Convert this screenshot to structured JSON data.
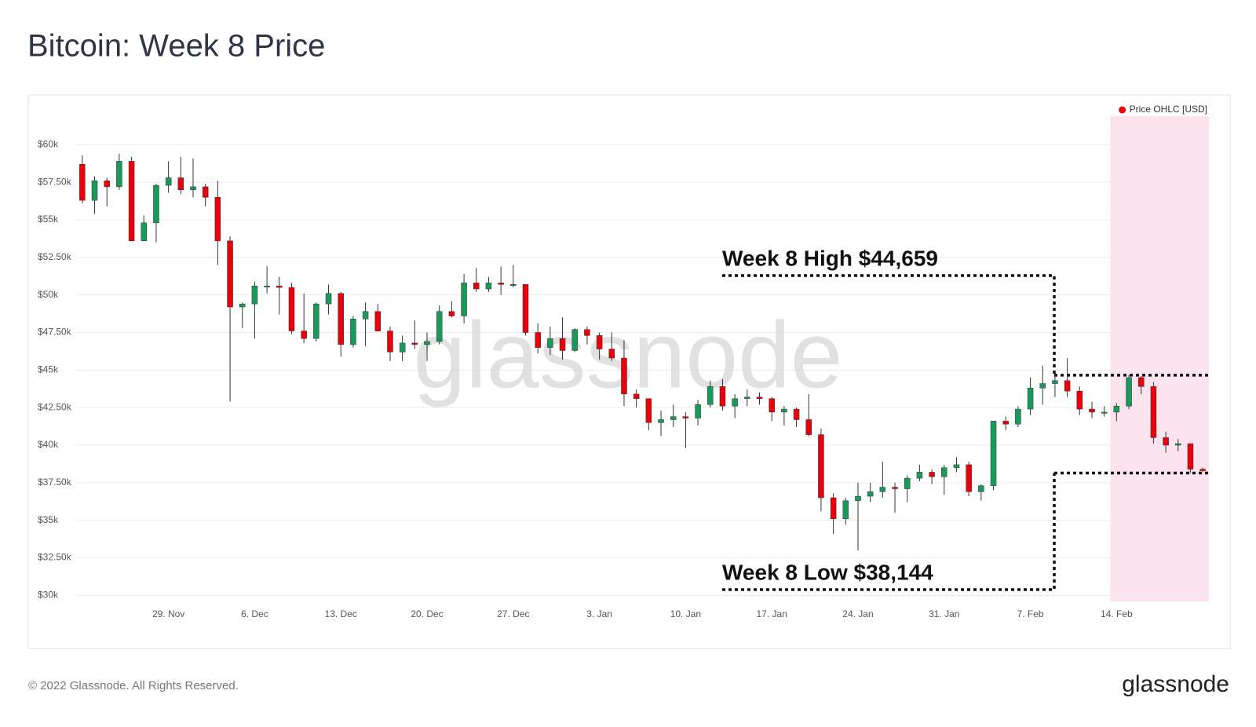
{
  "chart_data": {
    "type": "candlestick",
    "title": "Bitcoin: Week 8 Price",
    "footer": "© 2022 Glassnode. All Rights Reserved.",
    "logo": "glassnode",
    "watermark": "glassnode",
    "categories": [
      null,
      null,
      null,
      null,
      null,
      null,
      null,
      "29. Nov",
      null,
      null,
      null,
      null,
      null,
      null,
      "6. Dec",
      null,
      null,
      null,
      null,
      null,
      null,
      "13. Dec",
      null,
      null,
      null,
      null,
      null,
      null,
      "20. Dec",
      null,
      null,
      null,
      null,
      null,
      null,
      "27. Dec",
      null,
      null,
      null,
      null,
      null,
      null,
      "3. Jan",
      null,
      null,
      null,
      null,
      null,
      null,
      "10. Jan",
      null,
      null,
      null,
      null,
      null,
      null,
      "17. Jan",
      null,
      null,
      null,
      null,
      null,
      null,
      "24. Jan",
      null,
      null,
      null,
      null,
      null,
      null,
      "31. Jan",
      null,
      null,
      null,
      null,
      null,
      null,
      "7. Feb",
      null,
      null,
      null,
      null,
      null,
      null,
      "14. Feb",
      null,
      null,
      null,
      null,
      null,
      null,
      null
    ],
    "series": [
      {
        "name": "Price OHLC [USD]",
        "color": "#e8000b",
        "up_color": "#1a9a5a",
        "down_color": "#e8000b",
        "open": [
          58700,
          56300,
          57600,
          57200,
          58900,
          53600,
          54800,
          57300,
          57800,
          57000,
          57200,
          56500,
          53600,
          49200,
          49400,
          50600,
          50600,
          50500,
          47600,
          47100,
          49400,
          50100,
          46700,
          48400,
          48900,
          47600,
          46200,
          46800,
          46700,
          46900,
          48900,
          48600,
          50800,
          50400,
          50800,
          50700,
          50700,
          47500,
          46500,
          47100,
          46300,
          47700,
          47300,
          46400,
          45800,
          43400,
          43100,
          41500,
          41700,
          41900,
          41800,
          42700,
          43900,
          42600,
          43100,
          43200,
          43100,
          42200,
          42400,
          41700,
          40700,
          36500,
          35100,
          36300,
          36600,
          36900,
          37200,
          37100,
          37800,
          38200,
          37900,
          38500,
          38700,
          36900,
          37300,
          41600,
          41400,
          42400,
          43800,
          44100,
          44300,
          43600,
          42400,
          42200,
          42200,
          42600,
          44500,
          43900,
          40500,
          40000,
          40100,
          38400
        ],
        "high": [
          59300,
          57900,
          57800,
          59400,
          59200,
          55300,
          57400,
          58900,
          59200,
          59100,
          57400,
          57600,
          53900,
          49500,
          50900,
          51900,
          51200,
          50800,
          50100,
          49500,
          50700,
          50200,
          48600,
          49500,
          49400,
          47900,
          47300,
          48300,
          47500,
          49300,
          49600,
          51400,
          51800,
          51200,
          51900,
          52000,
          50700,
          48100,
          47900,
          48500,
          47800,
          47900,
          47500,
          47500,
          47000,
          43700,
          43100,
          42300,
          42700,
          42200,
          43000,
          44300,
          44400,
          43400,
          43700,
          43500,
          43200,
          42600,
          42500,
          43400,
          41100,
          36800,
          36500,
          37500,
          37500,
          38900,
          37500,
          38000,
          38700,
          38400,
          38700,
          39200,
          38900,
          37400,
          41600,
          41900,
          42600,
          44500,
          45300,
          44700,
          45800,
          43900,
          42900,
          42600,
          42800,
          44659,
          44600,
          44200,
          40900,
          40400,
          40100,
          38500
        ],
        "low": [
          56100,
          55400,
          55900,
          57000,
          53600,
          53600,
          53500,
          56800,
          56700,
          56500,
          55900,
          52000,
          42900,
          47800,
          47100,
          50100,
          48700,
          47400,
          46800,
          46900,
          48700,
          45900,
          46500,
          46600,
          47600,
          45600,
          45600,
          46400,
          45600,
          46700,
          48500,
          48100,
          50200,
          50200,
          50000,
          50500,
          47300,
          46100,
          46000,
          45700,
          46200,
          46700,
          45700,
          45600,
          42600,
          42500,
          41000,
          40600,
          41200,
          39800,
          41300,
          42500,
          42300,
          41800,
          42600,
          42700,
          41600,
          41300,
          41200,
          40600,
          35600,
          34100,
          34700,
          33000,
          36200,
          36500,
          35500,
          36200,
          37600,
          37400,
          36700,
          38200,
          36600,
          36300,
          37000,
          41000,
          41200,
          42000,
          42700,
          43200,
          43200,
          42000,
          41800,
          41900,
          41600,
          42400,
          43400,
          40100,
          39500,
          39600,
          38144,
          38200
        ],
        "close": [
          56300,
          57600,
          57200,
          58900,
          53600,
          54800,
          57300,
          57800,
          57000,
          57200,
          56500,
          53600,
          49200,
          49400,
          50600,
          50600,
          50500,
          47600,
          47100,
          49400,
          50100,
          46700,
          48400,
          48900,
          47600,
          46200,
          46800,
          46700,
          46900,
          48900,
          48600,
          50800,
          50400,
          50800,
          50700,
          50700,
          47500,
          46500,
          47100,
          46300,
          47700,
          47300,
          46400,
          45800,
          43400,
          43100,
          41500,
          41700,
          41900,
          41800,
          42700,
          43900,
          42600,
          43100,
          43200,
          43100,
          42200,
          42400,
          41700,
          40700,
          36500,
          35100,
          36300,
          36600,
          36900,
          37200,
          37100,
          37800,
          38200,
          37900,
          38500,
          38700,
          36900,
          37300,
          41600,
          41400,
          42400,
          43800,
          44100,
          44300,
          43600,
          42400,
          42200,
          42200,
          42600,
          44500,
          43900,
          40500,
          40000,
          40100,
          38400,
          38300
        ]
      }
    ],
    "ylim": [
      29600,
      61900
    ],
    "yticks": [
      {
        "value": 30000,
        "label": "$30k"
      },
      {
        "value": 32500,
        "label": "$32.50k"
      },
      {
        "value": 35000,
        "label": "$35k"
      },
      {
        "value": 37500,
        "label": "$37.50k"
      },
      {
        "value": 40000,
        "label": "$40k"
      },
      {
        "value": 42500,
        "label": "$42.50k"
      },
      {
        "value": 45000,
        "label": "$45k"
      },
      {
        "value": 47500,
        "label": "$47.50k"
      },
      {
        "value": 50000,
        "label": "$50k"
      },
      {
        "value": 52500,
        "label": "$52.50k"
      },
      {
        "value": 55000,
        "label": "$55k"
      },
      {
        "value": 57500,
        "label": "$57.50k"
      },
      {
        "value": 60000,
        "label": "$60k"
      }
    ],
    "grid": true,
    "legend": "top-right",
    "highlight": {
      "start": "14. Feb",
      "color": "#fde3ee"
    },
    "annotations": [
      {
        "text": "Week 8 High $44,659",
        "value": 44659
      },
      {
        "text": "Week 8 Low $38,144",
        "value": 38144
      }
    ]
  }
}
